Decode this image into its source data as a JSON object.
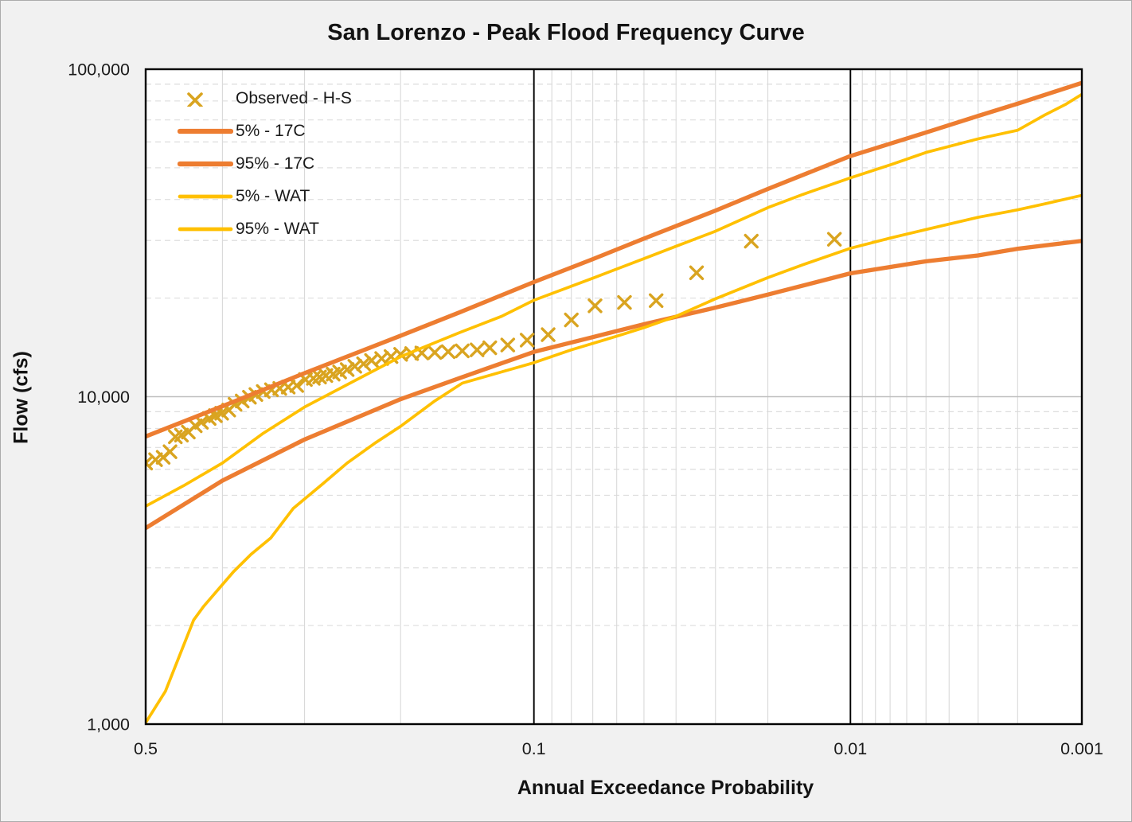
{
  "chart_data": {
    "type": "line",
    "title": "San Lorenzo - Peak Flood Frequency Curve",
    "xlabel": "Annual Exceedance Probability",
    "ylabel": "Flow (cfs)",
    "x_scale": "normal-probability-reversed",
    "y_scale": "log",
    "xlim": [
      0.5,
      0.001
    ],
    "ylim": [
      1000,
      100000
    ],
    "x_ticks": [
      {
        "value": 0.5,
        "label": "0.5"
      },
      {
        "value": 0.1,
        "label": "0.1"
      },
      {
        "value": 0.01,
        "label": "0.01"
      },
      {
        "value": 0.001,
        "label": "0.001"
      }
    ],
    "y_ticks": [
      {
        "value": 100000,
        "label": "100,000"
      },
      {
        "value": 10000,
        "label": "10,000"
      },
      {
        "value": 1000,
        "label": "1,000"
      }
    ],
    "grid": {
      "x_major": [
        0.1,
        0.01
      ],
      "x_minor": [
        0.4,
        0.3,
        0.2,
        0.09,
        0.08,
        0.07,
        0.06,
        0.05,
        0.04,
        0.03,
        0.02,
        0.009,
        0.008,
        0.007,
        0.006,
        0.005,
        0.004,
        0.003,
        0.002
      ],
      "y_major": [
        10000
      ],
      "y_minor": [
        2000,
        3000,
        4000,
        5000,
        6000,
        7000,
        8000,
        9000,
        20000,
        30000,
        40000,
        50000,
        60000,
        70000,
        80000,
        90000
      ]
    },
    "legend": {
      "position": "top-left-inside",
      "items": [
        {
          "label": "Observed - H-S",
          "type": "marker-x",
          "color": "#D9A420"
        },
        {
          "label": "5% - 17C",
          "type": "line",
          "color": "#ED7D31",
          "width": 5.3
        },
        {
          "label": "95% - 17C",
          "type": "line",
          "color": "#ED7D31",
          "width": 5.3
        },
        {
          "label": "5% - WAT",
          "type": "line",
          "color": "#FFC000",
          "width": 3.7
        },
        {
          "label": "95% - WAT",
          "type": "line",
          "color": "#FFC000",
          "width": 3.7
        }
      ]
    },
    "series": [
      {
        "name": "Observed - H-S",
        "type": "scatter-x",
        "color": "#D9A420",
        "marker_size": 15,
        "marker_stroke": 3.4,
        "points": [
          [
            0.5,
            6270
          ],
          [
            0.487,
            6420
          ],
          [
            0.477,
            6530
          ],
          [
            0.468,
            6790
          ],
          [
            0.461,
            7540
          ],
          [
            0.453,
            7630
          ],
          [
            0.444,
            7800
          ],
          [
            0.435,
            8150
          ],
          [
            0.427,
            8350
          ],
          [
            0.417,
            8580
          ],
          [
            0.409,
            8750
          ],
          [
            0.401,
            8900
          ],
          [
            0.392,
            9100
          ],
          [
            0.384,
            9480
          ],
          [
            0.375,
            9700
          ],
          [
            0.366,
            9960
          ],
          [
            0.358,
            10150
          ],
          [
            0.349,
            10370
          ],
          [
            0.339,
            10500
          ],
          [
            0.329,
            10600
          ],
          [
            0.319,
            10700
          ],
          [
            0.309,
            10820
          ],
          [
            0.299,
            11280
          ],
          [
            0.29,
            11380
          ],
          [
            0.283,
            11480
          ],
          [
            0.276,
            11600
          ],
          [
            0.268,
            11720
          ],
          [
            0.261,
            11900
          ],
          [
            0.253,
            12100
          ],
          [
            0.245,
            12380
          ],
          [
            0.236,
            12600
          ],
          [
            0.228,
            12900
          ],
          [
            0.218,
            13080
          ],
          [
            0.209,
            13260
          ],
          [
            0.2,
            13470
          ],
          [
            0.19,
            13540
          ],
          [
            0.181,
            13600
          ],
          [
            0.17,
            13650
          ],
          [
            0.159,
            13720
          ],
          [
            0.148,
            13800
          ],
          [
            0.137,
            13900
          ],
          [
            0.128,
            14100
          ],
          [
            0.116,
            14380
          ],
          [
            0.104,
            14880
          ],
          [
            0.092,
            15470
          ],
          [
            0.08,
            17150
          ],
          [
            0.069,
            18950
          ],
          [
            0.057,
            19400
          ],
          [
            0.046,
            19650
          ],
          [
            0.0345,
            23900
          ],
          [
            0.0228,
            29850
          ],
          [
            0.0115,
            30250
          ]
        ]
      },
      {
        "name": "5% - 17C",
        "type": "line",
        "color": "#ED7D31",
        "width": 5.3,
        "points": [
          [
            0.5,
            7560
          ],
          [
            0.4,
            9350
          ],
          [
            0.3,
            11800
          ],
          [
            0.2,
            15350
          ],
          [
            0.15,
            18100
          ],
          [
            0.1,
            22400
          ],
          [
            0.07,
            26300
          ],
          [
            0.05,
            30400
          ],
          [
            0.03,
            37000
          ],
          [
            0.02,
            43100
          ],
          [
            0.01,
            54300
          ],
          [
            0.005,
            64100
          ],
          [
            0.003,
            72000
          ],
          [
            0.002,
            78500
          ],
          [
            0.001,
            90800
          ]
        ]
      },
      {
        "name": "95% - 17C",
        "type": "line",
        "color": "#ED7D31",
        "width": 5.3,
        "points": [
          [
            0.5,
            3970
          ],
          [
            0.4,
            5540
          ],
          [
            0.3,
            7400
          ],
          [
            0.2,
            9830
          ],
          [
            0.15,
            11400
          ],
          [
            0.1,
            13700
          ],
          [
            0.07,
            15200
          ],
          [
            0.05,
            16650
          ],
          [
            0.03,
            18700
          ],
          [
            0.02,
            20500
          ],
          [
            0.01,
            23800
          ],
          [
            0.005,
            25900
          ],
          [
            0.003,
            27000
          ],
          [
            0.002,
            28300
          ],
          [
            0.001,
            29900
          ]
        ]
      },
      {
        "name": "5% - WAT",
        "type": "line",
        "color": "#FFC000",
        "width": 3.7,
        "points": [
          [
            0.5,
            4630
          ],
          [
            0.45,
            5350
          ],
          [
            0.4,
            6270
          ],
          [
            0.35,
            7700
          ],
          [
            0.3,
            9300
          ],
          [
            0.25,
            11000
          ],
          [
            0.2,
            13250
          ],
          [
            0.15,
            15700
          ],
          [
            0.12,
            17600
          ],
          [
            0.1,
            19700
          ],
          [
            0.07,
            23000
          ],
          [
            0.05,
            26400
          ],
          [
            0.04,
            28800
          ],
          [
            0.03,
            32000
          ],
          [
            0.02,
            37800
          ],
          [
            0.015,
            41500
          ],
          [
            0.01,
            46600
          ],
          [
            0.007,
            51000
          ],
          [
            0.005,
            55700
          ],
          [
            0.003,
            61300
          ],
          [
            0.002,
            65100
          ],
          [
            0.0015,
            72500
          ],
          [
            0.0012,
            78000
          ],
          [
            0.001,
            83800
          ]
        ]
      },
      {
        "name": "95% - WAT",
        "type": "line",
        "color": "#FFC000",
        "width": 3.7,
        "points": [
          [
            0.5,
            1010
          ],
          [
            0.474,
            1260
          ],
          [
            0.437,
            2080
          ],
          [
            0.424,
            2290
          ],
          [
            0.386,
            2920
          ],
          [
            0.364,
            3300
          ],
          [
            0.34,
            3700
          ],
          [
            0.313,
            4560
          ],
          [
            0.28,
            5400
          ],
          [
            0.253,
            6270
          ],
          [
            0.225,
            7200
          ],
          [
            0.2,
            8120
          ],
          [
            0.17,
            9700
          ],
          [
            0.148,
            11000
          ],
          [
            0.12,
            11900
          ],
          [
            0.1,
            12700
          ],
          [
            0.08,
            13900
          ],
          [
            0.06,
            15300
          ],
          [
            0.05,
            16250
          ],
          [
            0.04,
            17600
          ],
          [
            0.03,
            19900
          ],
          [
            0.02,
            23100
          ],
          [
            0.015,
            25300
          ],
          [
            0.01,
            28400
          ],
          [
            0.007,
            30500
          ],
          [
            0.005,
            32400
          ],
          [
            0.003,
            35300
          ],
          [
            0.002,
            37200
          ],
          [
            0.0015,
            38800
          ],
          [
            0.001,
            41200
          ]
        ]
      }
    ]
  },
  "colors": {
    "frame_bg": "#F1F1F1",
    "plot_bg": "#FFFFFF",
    "plot_border": "#000000",
    "grid_minor": "#D9D9D9",
    "grid_major_y": "#BFBFBF",
    "grid_major_x": "#000000",
    "text": "#1A1A1A",
    "orange_17c": "#ED7D31",
    "yellow_wat": "#FFC000",
    "observed_marker": "#D9A420"
  }
}
